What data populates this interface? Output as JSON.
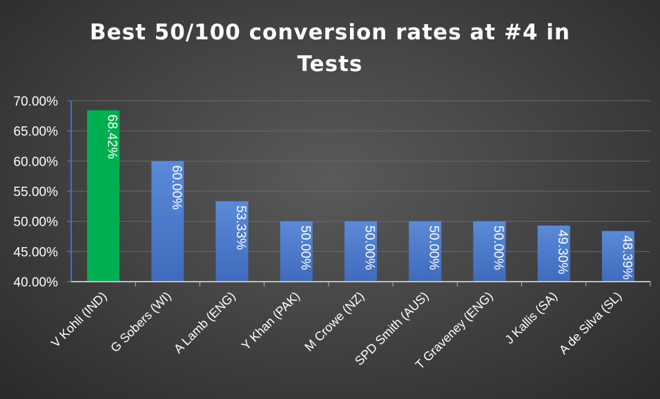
{
  "chart_data": {
    "type": "bar",
    "title_lines": [
      "Best 50/100 conversion rates at #4 in",
      "Tests"
    ],
    "categories": [
      "V Kohli (IND)",
      "G Sobers (WI)",
      "A Lamb (ENG)",
      "Y Khan (PAK)",
      "M Crowe (NZ)",
      "SPD Smith (AUS)",
      "T Graveney (ENG)",
      "J Kallis (SA)",
      "A de Silva (SL)"
    ],
    "values": [
      68.42,
      60.0,
      53.33,
      50.0,
      50.0,
      50.0,
      50.0,
      49.3,
      48.39
    ],
    "data_labels": [
      "68.42%",
      "60.00%",
      "53.33%",
      "50.00%",
      "50.00%",
      "50.00%",
      "50.00%",
      "49.30%",
      "48.39%"
    ],
    "y_ticks": [
      "40.00%",
      "45.00%",
      "50.00%",
      "55.00%",
      "60.00%",
      "65.00%",
      "70.00%"
    ],
    "ylim": [
      40,
      70
    ],
    "xlabel": "",
    "ylabel": "",
    "grid": true,
    "legend": "none",
    "colors": {
      "highlight_bar": "#00b050",
      "bar": "#4472c4",
      "bar_light": "#5b8ad8",
      "axis": "#4472c4",
      "grid": "#6a6a6a",
      "text": "#ffffff"
    }
  }
}
